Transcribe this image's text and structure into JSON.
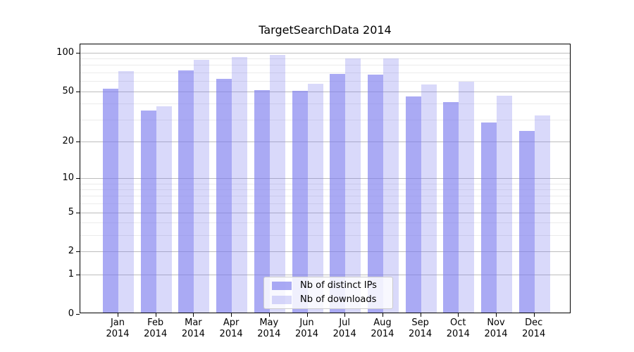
{
  "chart_data": {
    "type": "bar",
    "title": "TargetSearchData 2014",
    "categories": [
      "Jan",
      "Feb",
      "Mar",
      "Apr",
      "May",
      "Jun",
      "Jul",
      "Aug",
      "Sep",
      "Oct",
      "Nov",
      "Dec"
    ],
    "x_tick_second_line": "2014",
    "series": [
      {
        "name": "Nb of distinct IPs",
        "color": "rgba(120,120,238,0.63)",
        "values": [
          52,
          35,
          72,
          62,
          51,
          50,
          68,
          67,
          45,
          41,
          28,
          24
        ]
      },
      {
        "name": "Nb of downloads",
        "color": "rgba(120,120,238,0.28)",
        "values": [
          71,
          38,
          87,
          92,
          95,
          57,
          89,
          89,
          56,
          59,
          46,
          32
        ]
      }
    ],
    "y_axis": {
      "scale": "log10(value+1)",
      "major_ticks": [
        100,
        50,
        20,
        10,
        5,
        2,
        1,
        0
      ],
      "minor_ticks": [
        3,
        4,
        6,
        7,
        8,
        9,
        30,
        40,
        60,
        70,
        80,
        90
      ],
      "top_value": 115
    },
    "legend": {
      "position": "lower center"
    },
    "grid": {
      "major_color": "#bdbdbd",
      "minor_color": "#ebebeb"
    },
    "axis_color": "#000000",
    "background": "#ffffff"
  }
}
